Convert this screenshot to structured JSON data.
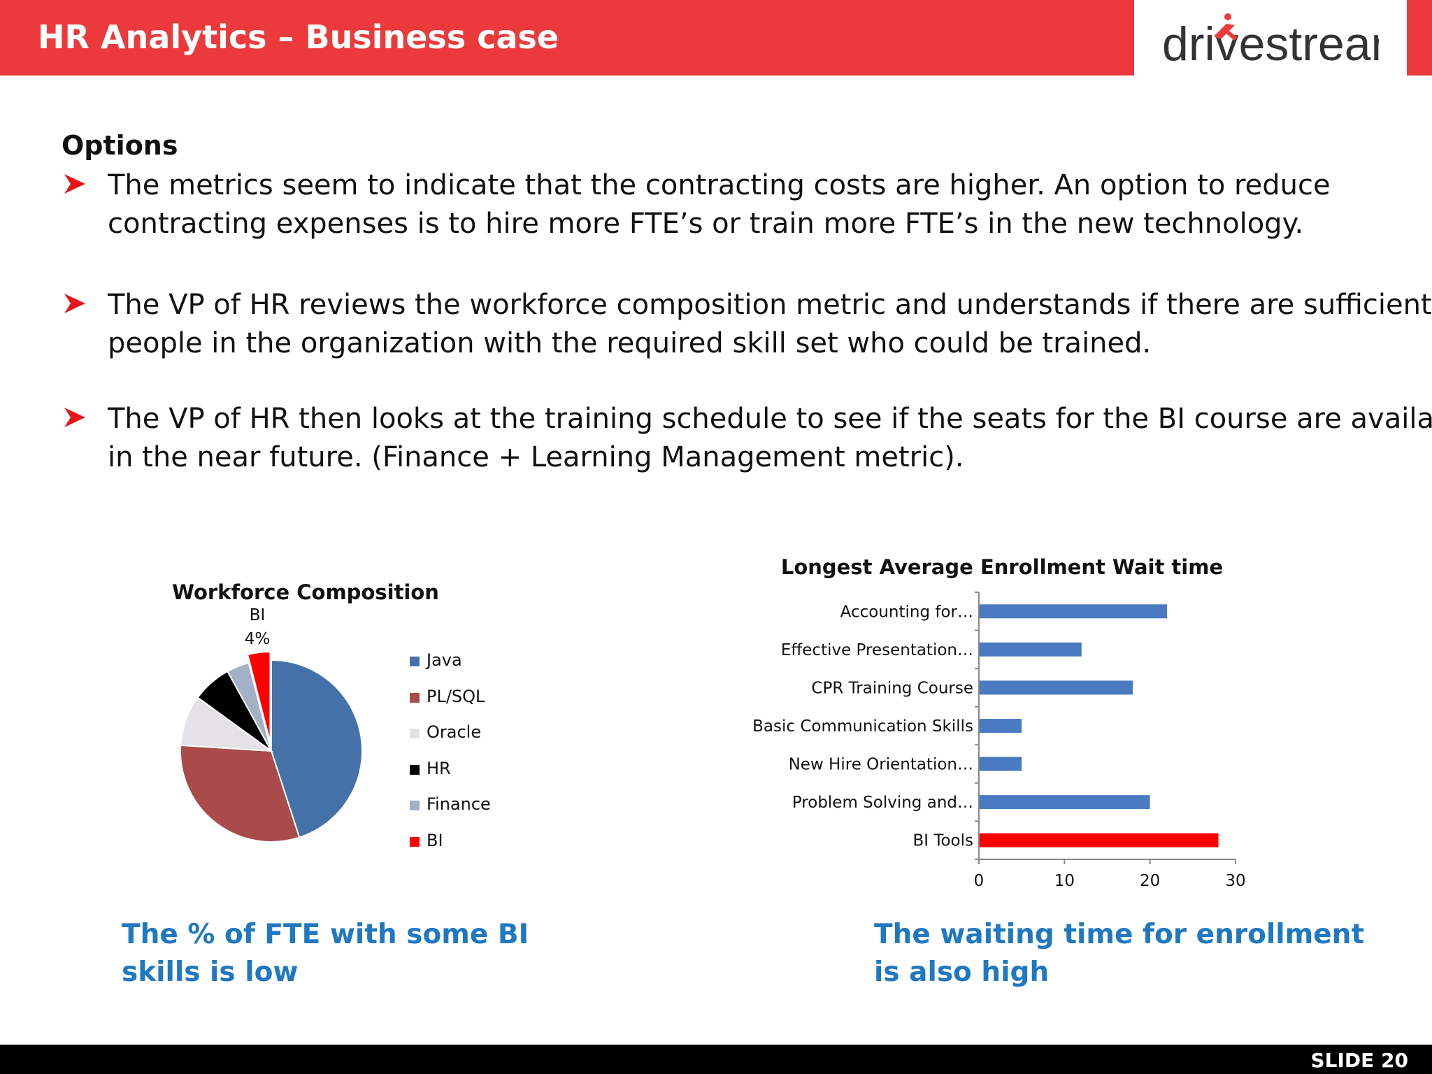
{
  "header": {
    "title": "HR Analytics – Business case",
    "logo_text": "drivestream",
    "accent_color": "#ec3a3c"
  },
  "content": {
    "heading": "Options",
    "bullets": [
      {
        "lines": [
          "The metrics seem to indicate that the contracting costs are higher.  An option to reduce",
          "contracting expenses is to hire more FTE’s or train more FTE’s in the new technology."
        ]
      },
      {
        "lines": [
          "The VP of HR reviews the workforce composition metric and understands if there are sufficient",
          "people in the organization with the required skill set who could be trained."
        ]
      },
      {
        "lines": [
          "The VP of HR then looks at the training schedule to see if the seats for the BI course are available",
          "in the near future. (Finance + Learning Management metric)."
        ]
      }
    ],
    "bullet_icon": "arrow-bullet-icon"
  },
  "chart_data": [
    {
      "type": "pie",
      "title": "Workforce Composition",
      "categories": [
        "Java",
        "PL/SQL",
        "Oracle",
        "HR",
        "Finance",
        "BI"
      ],
      "values": [
        45,
        31,
        9,
        7,
        4,
        4
      ],
      "colors": [
        "#4472a8",
        "#a84b4a",
        "#e4e2e6",
        "#000000",
        "#a3b1c6",
        "#ff0000"
      ],
      "data_labels": [
        {
          "category": "BI",
          "text": "BI",
          "value_text": "4%"
        }
      ],
      "legend": "right"
    },
    {
      "type": "bar",
      "orientation": "horizontal",
      "title": "Longest Average Enrollment Wait time",
      "categories": [
        "Accounting for…",
        "Effective Presentation…",
        "CPR Training Course",
        "Basic Communication Skills",
        "New Hire Orientation…",
        "Problem Solving and…",
        "BI Tools"
      ],
      "values": [
        22,
        12,
        18,
        5,
        5,
        20,
        28
      ],
      "colors": [
        "#4a7bc0",
        "#4a7bc0",
        "#4a7bc0",
        "#4a7bc0",
        "#4a7bc0",
        "#4a7bc0",
        "#ff0000"
      ],
      "xlim": [
        0,
        30
      ],
      "xticks": [
        "0",
        "10",
        "20",
        "30"
      ],
      "grid": false,
      "legend": "none"
    }
  ],
  "captions": {
    "left_lines": [
      "The % of FTE with some BI",
      "skills is low"
    ],
    "right_lines": [
      "The waiting time for enrollment",
      "is also high"
    ]
  },
  "footer": {
    "slide_label": "SLIDE 20"
  }
}
